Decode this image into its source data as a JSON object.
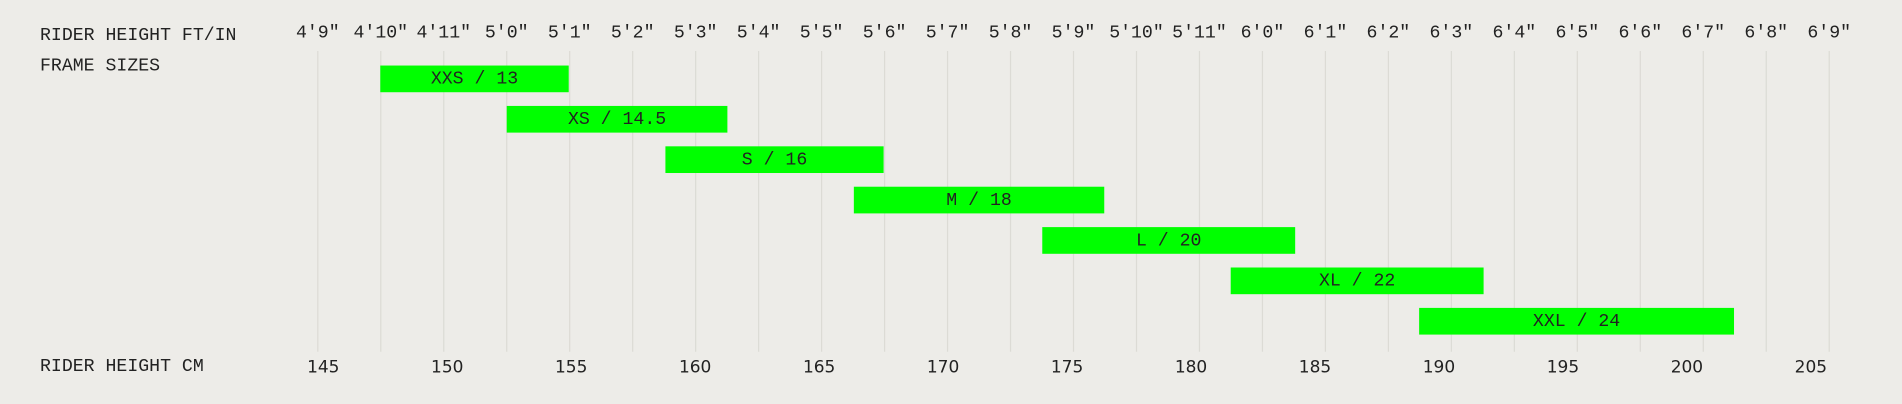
{
  "chart_data": {
    "type": "range-bar",
    "title": "RIDER HEIGHT FT/IN",
    "subtitle": "FRAME SIZES",
    "xlabel": "RIDER HEIGHT CM",
    "categories": [
      "XXS / 13",
      "XS / 14.5",
      "S / 16",
      "M / 18",
      "L / 20",
      "XL / 22",
      "XXL / 24"
    ],
    "starts": [
      147.3,
      152.4,
      158.8,
      166.4,
      174.0,
      181.6,
      189.2
    ],
    "ends": [
      154.9,
      161.3,
      167.6,
      176.5,
      184.2,
      191.8,
      201.9
    ],
    "color": "#00ff00",
    "xlim": [
      144.78,
      205.74
    ],
    "xticks": [
      145,
      150,
      155,
      160,
      165,
      170,
      175,
      180,
      185,
      190,
      195,
      200,
      205
    ],
    "x2ticks": [
      {
        "value": 144.78,
        "label": "4'9\""
      },
      {
        "value": 147.32,
        "label": "4'10\""
      },
      {
        "value": 149.86,
        "label": "4'11\""
      },
      {
        "value": 152.4,
        "label": "5'0\""
      },
      {
        "value": 154.94,
        "label": "5'1\""
      },
      {
        "value": 157.48,
        "label": "5'2\""
      },
      {
        "value": 160.02,
        "label": "5'3\""
      },
      {
        "value": 162.56,
        "label": "5'4\""
      },
      {
        "value": 165.1,
        "label": "5'5\""
      },
      {
        "value": 167.64,
        "label": "5'6\""
      },
      {
        "value": 170.18,
        "label": "5'7\""
      },
      {
        "value": 172.72,
        "label": "5'8\""
      },
      {
        "value": 175.26,
        "label": "5'9\""
      },
      {
        "value": 177.8,
        "label": "5'10\""
      },
      {
        "value": 180.34,
        "label": "5'11\""
      },
      {
        "value": 182.88,
        "label": "6'0\""
      },
      {
        "value": 185.42,
        "label": "6'1\""
      },
      {
        "value": 187.96,
        "label": "6'2\""
      },
      {
        "value": 190.5,
        "label": "6'3\""
      },
      {
        "value": 193.04,
        "label": "6'4\""
      },
      {
        "value": 195.58,
        "label": "6'5\""
      },
      {
        "value": 198.12,
        "label": "6'6\""
      },
      {
        "value": 200.66,
        "label": "6'7\""
      },
      {
        "value": 203.2,
        "label": "6'8\""
      },
      {
        "value": 205.74,
        "label": "6'9\""
      }
    ],
    "grid": true
  }
}
